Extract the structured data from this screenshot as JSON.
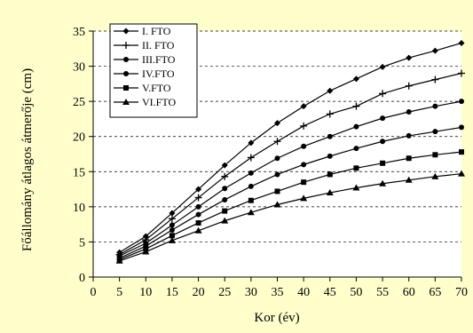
{
  "chart_data": {
    "type": "line",
    "title": "",
    "xlabel": "Kor (év)",
    "ylabel": "Főállomány átlagos átmerője (cm)",
    "x": [
      5,
      10,
      15,
      20,
      25,
      30,
      35,
      40,
      45,
      50,
      55,
      60,
      65,
      70
    ],
    "xlim": [
      0,
      70
    ],
    "ylim": [
      0,
      35
    ],
    "xticks": [
      "0",
      "5",
      "10",
      "15",
      "20",
      "25",
      "30",
      "35",
      "40",
      "45",
      "50",
      "55",
      "60",
      "65",
      "70"
    ],
    "yticks": [
      "0",
      "5",
      "10",
      "15",
      "20",
      "25",
      "30",
      "35"
    ],
    "grid": "horizontal dashed",
    "legend_position": "top-left",
    "series": [
      {
        "name": "I. FTO",
        "marker": "diamond",
        "values": [
          3.5,
          5.8,
          9.1,
          12.5,
          15.9,
          19.1,
          21.9,
          24.3,
          26.5,
          28.2,
          29.9,
          31.2,
          32.2,
          33.3
        ]
      },
      {
        "name": "II. FTO",
        "marker": "plus",
        "values": [
          3.2,
          5.3,
          8.3,
          11.3,
          14.3,
          17.0,
          19.3,
          21.5,
          23.2,
          24.3,
          26.1,
          27.2,
          28.1,
          29.0
        ]
      },
      {
        "name": "III.FTO",
        "marker": "circle",
        "values": [
          3.0,
          4.8,
          7.4,
          10.0,
          12.6,
          14.8,
          16.9,
          18.6,
          20.0,
          21.4,
          22.6,
          23.5,
          24.3,
          25.0
        ]
      },
      {
        "name": "IV.FTO",
        "marker": "circle",
        "values": [
          2.7,
          4.4,
          6.7,
          8.9,
          11.0,
          12.9,
          14.6,
          16.0,
          17.2,
          18.3,
          19.3,
          20.1,
          20.7,
          21.3
        ]
      },
      {
        "name": "V.FTO",
        "marker": "square",
        "values": [
          2.5,
          4.0,
          5.9,
          7.7,
          9.4,
          10.9,
          12.2,
          13.5,
          14.6,
          15.5,
          16.2,
          16.9,
          17.4,
          17.8
        ]
      },
      {
        "name": "VI.FTO",
        "marker": "triangle",
        "values": [
          2.3,
          3.6,
          5.2,
          6.6,
          8.0,
          9.2,
          10.3,
          11.2,
          12.0,
          12.7,
          13.3,
          13.8,
          14.3,
          14.7
        ]
      }
    ]
  }
}
